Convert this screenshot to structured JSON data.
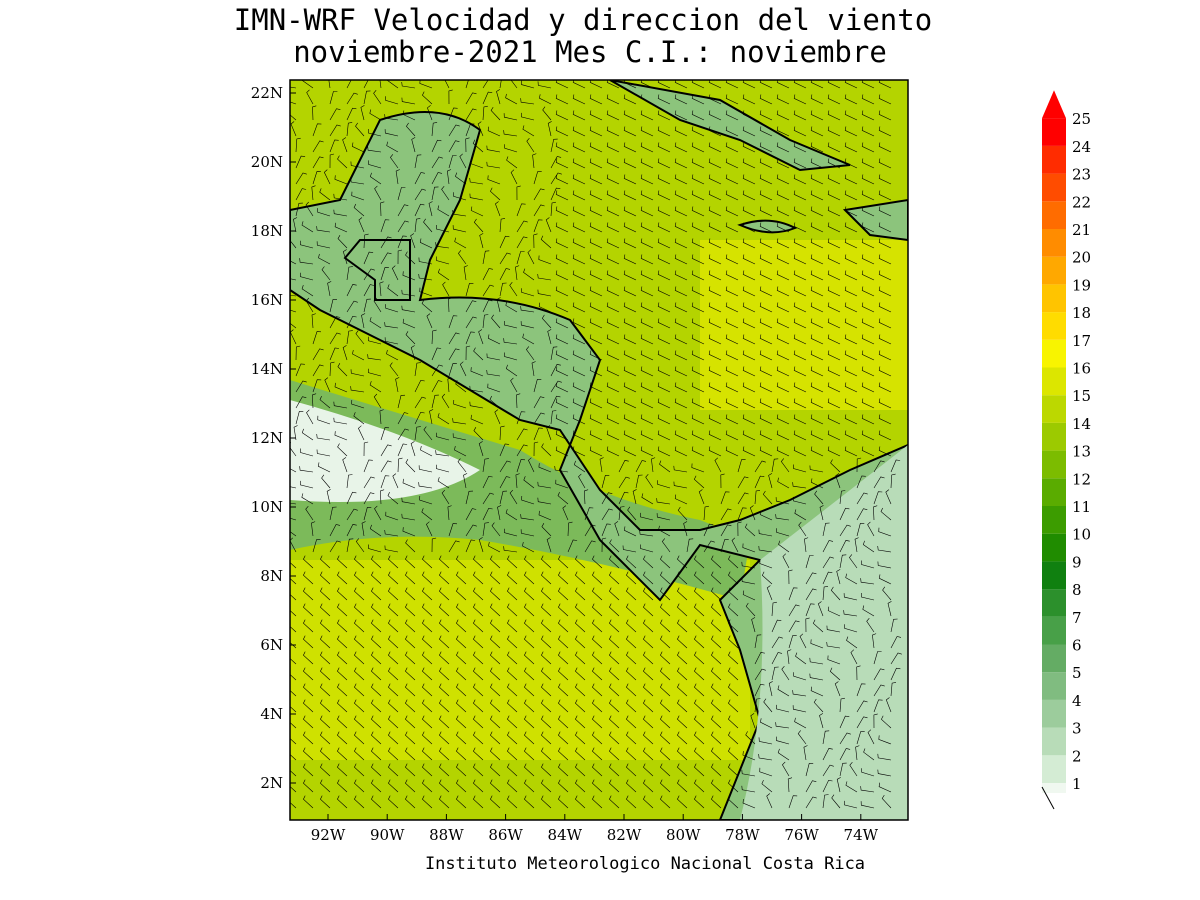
{
  "header": {
    "title_line1": "IMN-WRF Velocidad y direccion del viento",
    "title_line2": "noviembre-2021 Mes C.I.: noviembre"
  },
  "map": {
    "lat_labels": [
      "22N",
      "20N",
      "18N",
      "16N",
      "14N",
      "12N",
      "10N",
      "8N",
      "6N",
      "4N",
      "2N"
    ],
    "lon_labels": [
      "92W",
      "90W",
      "88W",
      "86W",
      "84W",
      "82W",
      "80W",
      "78W",
      "76W",
      "74W"
    ]
  },
  "colorbar": {
    "levels": [
      1,
      2,
      3,
      4,
      5,
      6,
      7,
      8,
      9,
      10,
      11,
      12,
      13,
      14,
      15,
      16,
      17,
      18,
      19,
      20,
      21,
      22,
      23,
      24,
      25
    ],
    "colors": [
      "#f0f8f0",
      "#d4ecd4",
      "#b8dcb8",
      "#9ccc9c",
      "#80bc80",
      "#64ac64",
      "#48a048",
      "#2c902c",
      "#108010",
      "#208c00",
      "#3c9c00",
      "#5aac00",
      "#7cbc00",
      "#9cca00",
      "#bcd800",
      "#dce600",
      "#f8f400",
      "#ffdc00",
      "#ffc400",
      "#ffa800",
      "#ff8c00",
      "#ff6c00",
      "#ff4c00",
      "#ff2c00",
      "#ff0000"
    ]
  },
  "footer": "Instituto Meteorologico Nacional Costa Rica"
}
